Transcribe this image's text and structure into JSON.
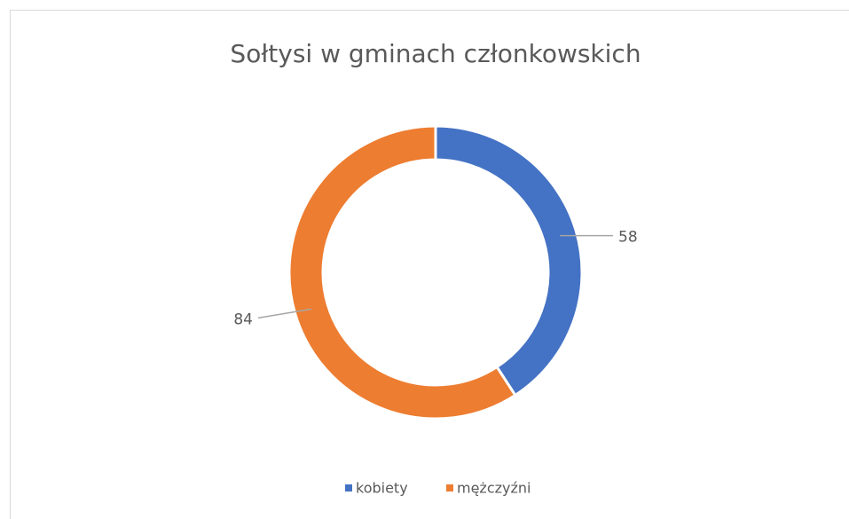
{
  "chart_data": {
    "type": "donut",
    "title": "Sołtysi w gminach członkowskich",
    "categories": [
      "kobiety",
      "mężczyźni"
    ],
    "values": [
      58,
      84
    ],
    "colors": [
      "#4472c4",
      "#ed7d31"
    ],
    "legend": "bottom"
  }
}
